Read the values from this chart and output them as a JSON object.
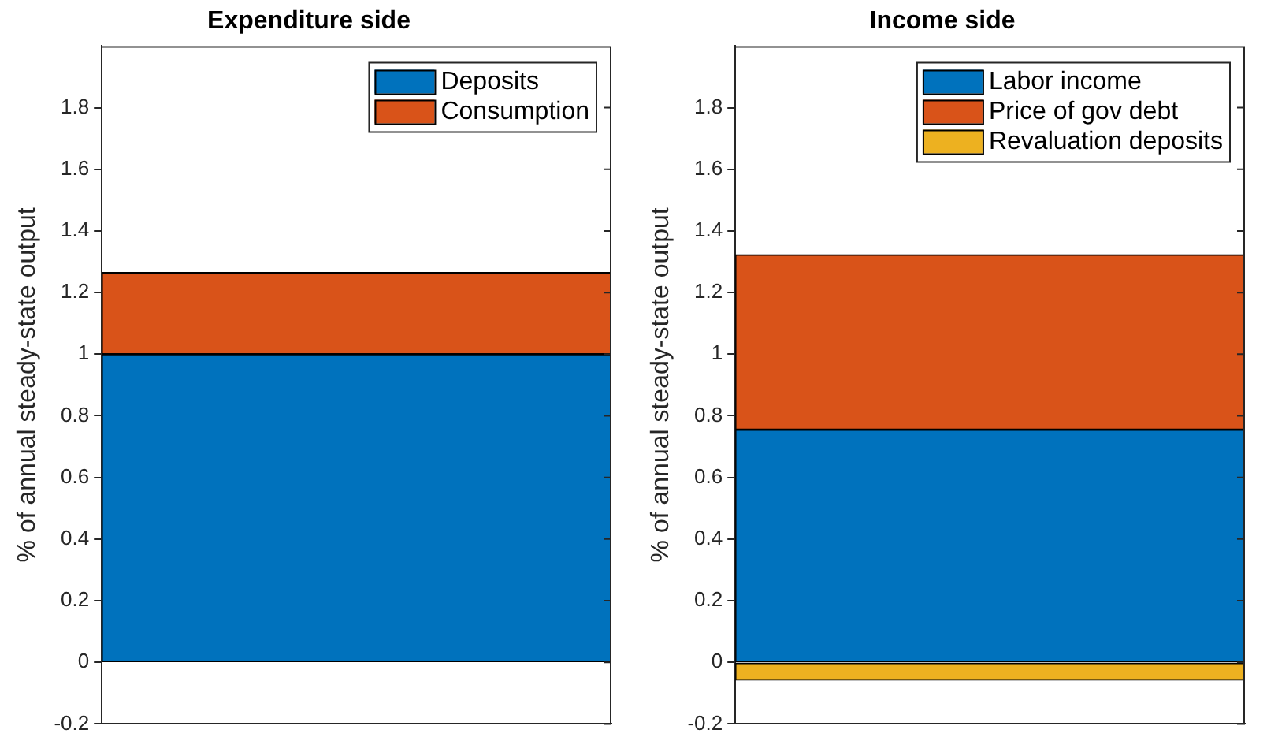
{
  "chart_data": [
    {
      "type": "bar",
      "title": "Expenditure side",
      "ylabel": "% of annual steady-state output",
      "categories": [
        null
      ],
      "stacked": true,
      "series": [
        {
          "name": "Deposits",
          "color": "#0072bd",
          "values": [
            1.0
          ]
        },
        {
          "name": "Consumption",
          "color": "#d95319",
          "values": [
            0.265
          ]
        }
      ],
      "ylim": [
        -0.2,
        2
      ],
      "yticks": [
        -0.2,
        0,
        0.2,
        0.4,
        0.6,
        0.8,
        1,
        1.2,
        1.4,
        1.6,
        1.8
      ],
      "grid": false,
      "legend": "top right",
      "tick_labels": "y"
    },
    {
      "type": "bar",
      "title": "Income side",
      "ylabel": "% of annual steady-state output",
      "categories": [
        null
      ],
      "stacked": true,
      "series": [
        {
          "name": "Labor income",
          "color": "#0072bd",
          "values": [
            0.755
          ]
        },
        {
          "name": "Price of gov debt",
          "color": "#d95319",
          "values": [
            0.568
          ]
        },
        {
          "name": "Revaluation deposits",
          "color": "#edb120",
          "values": [
            -0.058
          ]
        }
      ],
      "ylim": [
        -0.2,
        2
      ],
      "yticks": [
        -0.2,
        0,
        0.2,
        0.4,
        0.6,
        0.8,
        1,
        1.2,
        1.4,
        1.6,
        1.8
      ],
      "grid": false,
      "legend": "top right",
      "tick_labels": "y"
    }
  ]
}
